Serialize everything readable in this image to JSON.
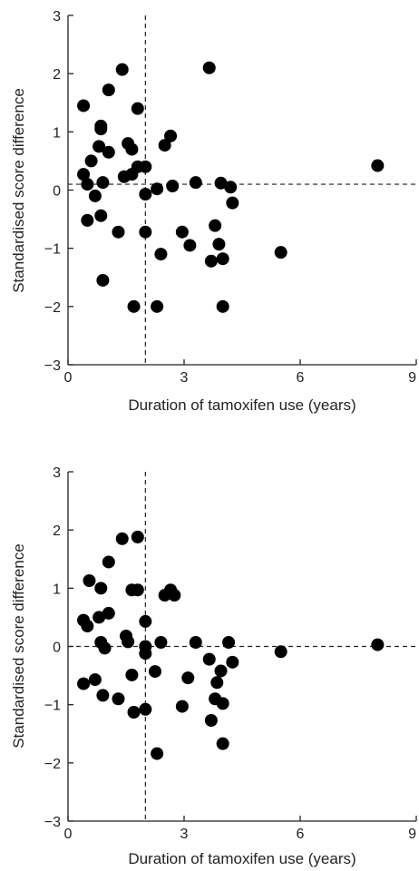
{
  "chart_data": [
    {
      "type": "scatter",
      "xlabel": "Duration of tamoxifen use (years)",
      "ylabel": "Standardised score difference",
      "xlim": [
        0,
        9
      ],
      "ylim": [
        -3,
        3
      ],
      "xticks": [
        "0",
        "3",
        "6",
        "9"
      ],
      "yticks": [
        "3",
        "2",
        "1",
        "0",
        "−1",
        "−2",
        "−3"
      ],
      "ref_x": 2,
      "ref_y": 0.1,
      "points": [
        {
          "x": 0.4,
          "y": 1.45
        },
        {
          "x": 0.4,
          "y": 0.27
        },
        {
          "x": 0.5,
          "y": 0.1
        },
        {
          "x": 0.5,
          "y": -0.52
        },
        {
          "x": 0.6,
          "y": 0.5
        },
        {
          "x": 0.7,
          "y": -0.1
        },
        {
          "x": 0.8,
          "y": 0.75
        },
        {
          "x": 0.85,
          "y": 1.1
        },
        {
          "x": 0.85,
          "y": 1.05
        },
        {
          "x": 0.85,
          "y": -0.44
        },
        {
          "x": 0.9,
          "y": 0.13
        },
        {
          "x": 0.9,
          "y": -1.55
        },
        {
          "x": 1.05,
          "y": 1.72
        },
        {
          "x": 1.05,
          "y": 0.65
        },
        {
          "x": 1.3,
          "y": -0.72
        },
        {
          "x": 1.4,
          "y": 2.07
        },
        {
          "x": 1.45,
          "y": 0.23
        },
        {
          "x": 1.55,
          "y": 0.8
        },
        {
          "x": 1.65,
          "y": 0.7
        },
        {
          "x": 1.65,
          "y": 0.27
        },
        {
          "x": 1.7,
          "y": -2.0
        },
        {
          "x": 1.8,
          "y": 1.4
        },
        {
          "x": 1.8,
          "y": 0.4
        },
        {
          "x": 2.0,
          "y": 0.4
        },
        {
          "x": 2.0,
          "y": -0.07
        },
        {
          "x": 2.0,
          "y": -0.72
        },
        {
          "x": 2.3,
          "y": 0.02
        },
        {
          "x": 2.3,
          "y": -2.0
        },
        {
          "x": 2.4,
          "y": -1.1
        },
        {
          "x": 2.5,
          "y": 0.77
        },
        {
          "x": 2.65,
          "y": 0.93
        },
        {
          "x": 2.7,
          "y": 0.07
        },
        {
          "x": 2.95,
          "y": -0.72
        },
        {
          "x": 3.15,
          "y": -0.95
        },
        {
          "x": 3.3,
          "y": 0.13
        },
        {
          "x": 3.65,
          "y": 2.1
        },
        {
          "x": 3.7,
          "y": -1.22
        },
        {
          "x": 3.8,
          "y": -0.61
        },
        {
          "x": 3.9,
          "y": -0.93
        },
        {
          "x": 3.95,
          "y": 0.12
        },
        {
          "x": 4.0,
          "y": -1.18
        },
        {
          "x": 4.0,
          "y": -2.0
        },
        {
          "x": 4.2,
          "y": 0.05
        },
        {
          "x": 4.25,
          "y": -0.22
        },
        {
          "x": 5.5,
          "y": -1.07
        },
        {
          "x": 8.0,
          "y": 0.42
        }
      ]
    },
    {
      "type": "scatter",
      "xlabel": "Duration of tamoxifen use (years)",
      "ylabel": "Standardised score difference",
      "xlim": [
        0,
        9
      ],
      "ylim": [
        -3,
        3
      ],
      "xticks": [
        "0",
        "3",
        "6",
        "9"
      ],
      "yticks": [
        "3",
        "2",
        "1",
        "0",
        "−1",
        "−2",
        "−3"
      ],
      "ref_x": 2,
      "ref_y": 0,
      "points": [
        {
          "x": 0.4,
          "y": 0.45
        },
        {
          "x": 0.4,
          "y": -0.64
        },
        {
          "x": 0.5,
          "y": 0.35
        },
        {
          "x": 0.55,
          "y": 1.13
        },
        {
          "x": 0.7,
          "y": -0.57
        },
        {
          "x": 0.8,
          "y": 0.5
        },
        {
          "x": 0.85,
          "y": 1.0
        },
        {
          "x": 0.85,
          "y": 0.07
        },
        {
          "x": 0.9,
          "y": -0.84
        },
        {
          "x": 0.95,
          "y": -0.03
        },
        {
          "x": 1.05,
          "y": 1.45
        },
        {
          "x": 1.05,
          "y": 0.57
        },
        {
          "x": 1.3,
          "y": -0.9
        },
        {
          "x": 1.4,
          "y": 1.85
        },
        {
          "x": 1.5,
          "y": 0.18
        },
        {
          "x": 1.55,
          "y": 0.08
        },
        {
          "x": 1.65,
          "y": 0.97
        },
        {
          "x": 1.65,
          "y": -0.49
        },
        {
          "x": 1.7,
          "y": -1.13
        },
        {
          "x": 1.8,
          "y": 1.88
        },
        {
          "x": 1.8,
          "y": 0.97
        },
        {
          "x": 2.0,
          "y": 0.43
        },
        {
          "x": 2.0,
          "y": 0.0
        },
        {
          "x": 2.0,
          "y": -0.12
        },
        {
          "x": 2.0,
          "y": -1.08
        },
        {
          "x": 2.25,
          "y": -0.43
        },
        {
          "x": 2.3,
          "y": -1.84
        },
        {
          "x": 2.4,
          "y": 0.07
        },
        {
          "x": 2.5,
          "y": 0.88
        },
        {
          "x": 2.65,
          "y": 0.97
        },
        {
          "x": 2.75,
          "y": 0.88
        },
        {
          "x": 2.95,
          "y": -1.03
        },
        {
          "x": 3.1,
          "y": -0.54
        },
        {
          "x": 3.3,
          "y": 0.07
        },
        {
          "x": 3.65,
          "y": -0.22
        },
        {
          "x": 3.7,
          "y": -1.27
        },
        {
          "x": 3.8,
          "y": -0.9
        },
        {
          "x": 3.85,
          "y": -0.62
        },
        {
          "x": 3.95,
          "y": -0.42
        },
        {
          "x": 4.0,
          "y": -0.98
        },
        {
          "x": 4.0,
          "y": -1.67
        },
        {
          "x": 4.15,
          "y": 0.07
        },
        {
          "x": 4.25,
          "y": -0.27
        },
        {
          "x": 5.5,
          "y": -0.09
        },
        {
          "x": 8.0,
          "y": 0.03
        }
      ]
    }
  ]
}
